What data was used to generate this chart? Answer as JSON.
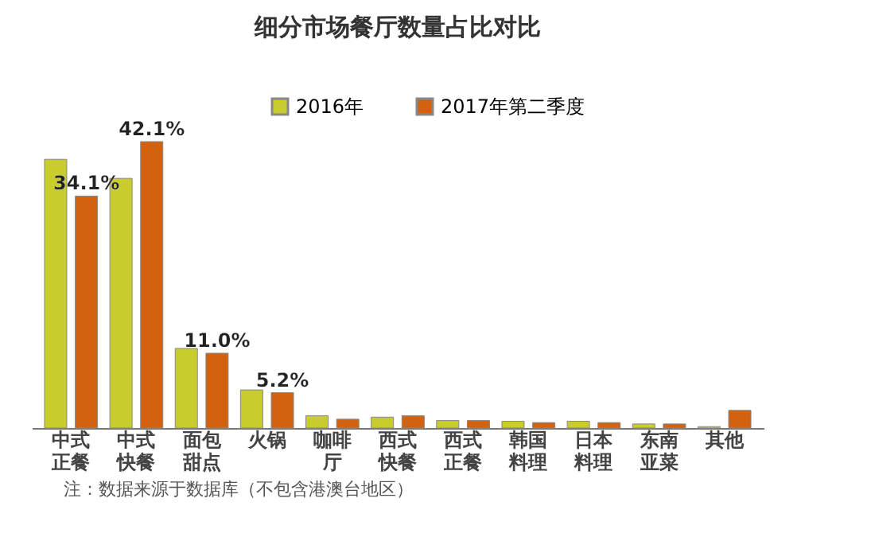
{
  "chart_data": {
    "type": "bar",
    "title": "细分市场餐厅数量占比对比",
    "categories": [
      "中式正餐",
      "中式快餐",
      "面包甜点",
      "火锅",
      "咖啡厅",
      "西式快餐",
      "西式正餐",
      "韩国料理",
      "日本料理",
      "东南亚菜",
      "其他"
    ],
    "series": [
      {
        "name": "2016年",
        "color": "#c8cc2c",
        "values": [
          39.5,
          36.7,
          11.7,
          5.6,
          1.8,
          1.6,
          1.1,
          1.0,
          1.0,
          0.6,
          0.2
        ]
      },
      {
        "name": "2017年第二季度",
        "color": "#d2620f",
        "values": [
          34.1,
          42.1,
          11.0,
          5.2,
          1.3,
          1.8,
          1.1,
          0.8,
          0.8,
          0.6,
          2.6
        ],
        "value_labels": [
          "34.1%",
          "42.1%",
          "11.0%",
          "5.2%",
          null,
          null,
          null,
          null,
          null,
          null,
          null
        ]
      }
    ],
    "legend": "top",
    "grid": false,
    "annotations": [
      "注：数据来源于数据库（不包含港澳台地区）"
    ]
  }
}
